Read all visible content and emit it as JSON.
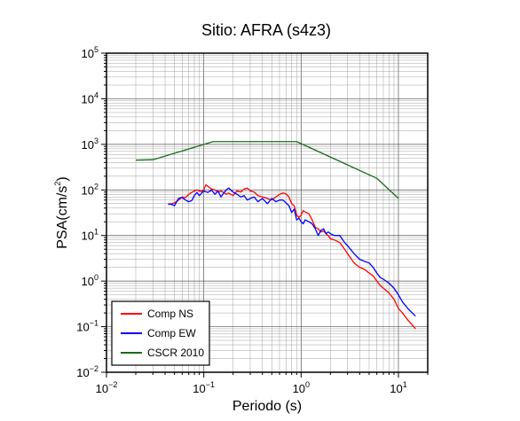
{
  "chart_data": {
    "type": "line",
    "title": "Sitio: AFRA (s4z3)",
    "xlabel": "Periodo (s)",
    "ylabel_base": "PSA(cm/s",
    "ylabel_sup": "2",
    "ylabel_close": ")",
    "xscale": "log",
    "yscale": "log",
    "xlim": [
      0.01,
      20
    ],
    "ylim": [
      0.01,
      100000
    ],
    "grid": true,
    "legend_position": "bottom-left",
    "x_ticks": [
      {
        "base": "10",
        "exp": "−2",
        "value": 0.01
      },
      {
        "base": "10",
        "exp": "−1",
        "value": 0.1
      },
      {
        "base": "10",
        "exp": "0",
        "value": 1
      },
      {
        "base": "10",
        "exp": "1",
        "value": 10
      }
    ],
    "y_ticks": [
      {
        "base": "10",
        "exp": "−2",
        "value": 0.01
      },
      {
        "base": "10",
        "exp": "−1",
        "value": 0.1
      },
      {
        "base": "10",
        "exp": "0",
        "value": 1
      },
      {
        "base": "10",
        "exp": "1",
        "value": 10
      },
      {
        "base": "10",
        "exp": "2",
        "value": 100
      },
      {
        "base": "10",
        "exp": "3",
        "value": 1000
      },
      {
        "base": "10",
        "exp": "4",
        "value": 10000
      },
      {
        "base": "10",
        "exp": "5",
        "value": 100000
      }
    ],
    "series": [
      {
        "name": "Comp NS",
        "color": "#ff0000",
        "points": [
          [
            0.043,
            48
          ],
          [
            0.047,
            50
          ],
          [
            0.05,
            52
          ],
          [
            0.055,
            60
          ],
          [
            0.06,
            70
          ],
          [
            0.065,
            68
          ],
          [
            0.07,
            80
          ],
          [
            0.075,
            88
          ],
          [
            0.08,
            95
          ],
          [
            0.085,
            100
          ],
          [
            0.09,
            95
          ],
          [
            0.095,
            92
          ],
          [
            0.1,
            100
          ],
          [
            0.105,
            130
          ],
          [
            0.11,
            120
          ],
          [
            0.12,
            105
          ],
          [
            0.13,
            100
          ],
          [
            0.14,
            90
          ],
          [
            0.15,
            95
          ],
          [
            0.16,
            88
          ],
          [
            0.17,
            80
          ],
          [
            0.18,
            85
          ],
          [
            0.2,
            75
          ],
          [
            0.22,
            95
          ],
          [
            0.24,
            90
          ],
          [
            0.26,
            105
          ],
          [
            0.28,
            110
          ],
          [
            0.3,
            95
          ],
          [
            0.33,
            90
          ],
          [
            0.36,
            75
          ],
          [
            0.4,
            70
          ],
          [
            0.45,
            65
          ],
          [
            0.5,
            60
          ],
          [
            0.55,
            70
          ],
          [
            0.6,
            80
          ],
          [
            0.65,
            85
          ],
          [
            0.7,
            82
          ],
          [
            0.75,
            70
          ],
          [
            0.8,
            50
          ],
          [
            0.85,
            45
          ],
          [
            0.9,
            28
          ],
          [
            0.95,
            25
          ],
          [
            1.0,
            28
          ],
          [
            1.05,
            35
          ],
          [
            1.1,
            33
          ],
          [
            1.2,
            30
          ],
          [
            1.3,
            22
          ],
          [
            1.4,
            15
          ],
          [
            1.5,
            14
          ],
          [
            1.6,
            12
          ],
          [
            1.7,
            12.5
          ],
          [
            1.8,
            11
          ],
          [
            1.9,
            10
          ],
          [
            2.0,
            8.5
          ],
          [
            2.2,
            8
          ],
          [
            2.5,
            7
          ],
          [
            2.8,
            5
          ],
          [
            3.0,
            4
          ],
          [
            3.5,
            2.5
          ],
          [
            4.0,
            2
          ],
          [
            4.5,
            1.8
          ],
          [
            5.0,
            1.5
          ],
          [
            5.5,
            1.3
          ],
          [
            6.0,
            1.0
          ],
          [
            6.5,
            0.8
          ],
          [
            7.0,
            0.7
          ],
          [
            8.0,
            0.55
          ],
          [
            9.0,
            0.4
          ],
          [
            10.0,
            0.25
          ],
          [
            11.0,
            0.2
          ],
          [
            12.5,
            0.14
          ],
          [
            15.0,
            0.09
          ]
        ]
      },
      {
        "name": "Comp EW",
        "color": "#0000ff",
        "points": [
          [
            0.043,
            50
          ],
          [
            0.047,
            48
          ],
          [
            0.05,
            45
          ],
          [
            0.055,
            65
          ],
          [
            0.06,
            68
          ],
          [
            0.065,
            60
          ],
          [
            0.07,
            55
          ],
          [
            0.075,
            58
          ],
          [
            0.08,
            75
          ],
          [
            0.085,
            88
          ],
          [
            0.09,
            75
          ],
          [
            0.095,
            85
          ],
          [
            0.1,
            95
          ],
          [
            0.11,
            88
          ],
          [
            0.12,
            100
          ],
          [
            0.13,
            80
          ],
          [
            0.14,
            95
          ],
          [
            0.15,
            70
          ],
          [
            0.16,
            85
          ],
          [
            0.17,
            100
          ],
          [
            0.18,
            110
          ],
          [
            0.2,
            90
          ],
          [
            0.22,
            80
          ],
          [
            0.24,
            70
          ],
          [
            0.26,
            75
          ],
          [
            0.28,
            60
          ],
          [
            0.3,
            65
          ],
          [
            0.33,
            70
          ],
          [
            0.36,
            55
          ],
          [
            0.4,
            65
          ],
          [
            0.45,
            50
          ],
          [
            0.5,
            65
          ],
          [
            0.55,
            55
          ],
          [
            0.6,
            60
          ],
          [
            0.65,
            60
          ],
          [
            0.7,
            52
          ],
          [
            0.75,
            45
          ],
          [
            0.8,
            32
          ],
          [
            0.85,
            38
          ],
          [
            0.9,
            22
          ],
          [
            0.95,
            24
          ],
          [
            1.0,
            20
          ],
          [
            1.05,
            18
          ],
          [
            1.1,
            22
          ],
          [
            1.2,
            20
          ],
          [
            1.3,
            18
          ],
          [
            1.4,
            14
          ],
          [
            1.5,
            10
          ],
          [
            1.6,
            13
          ],
          [
            1.7,
            14
          ],
          [
            1.8,
            11
          ],
          [
            1.9,
            12
          ],
          [
            2.0,
            11
          ],
          [
            2.2,
            10
          ],
          [
            2.5,
            10
          ],
          [
            2.8,
            7
          ],
          [
            3.0,
            6
          ],
          [
            3.5,
            4
          ],
          [
            4.0,
            3
          ],
          [
            4.5,
            2.7
          ],
          [
            5.0,
            2.5
          ],
          [
            5.5,
            2
          ],
          [
            6.0,
            1.5
          ],
          [
            6.5,
            1.2
          ],
          [
            7.0,
            1.1
          ],
          [
            8.0,
            0.9
          ],
          [
            9.0,
            0.7
          ],
          [
            10.0,
            0.5
          ],
          [
            11.0,
            0.35
          ],
          [
            12.5,
            0.25
          ],
          [
            15.0,
            0.17
          ]
        ]
      },
      {
        "name": "CSCR 2010",
        "color": "#1a6b1a",
        "points": [
          [
            0.02,
            450
          ],
          [
            0.03,
            460
          ],
          [
            0.125,
            1150
          ],
          [
            0.9,
            1150
          ],
          [
            6.0,
            180
          ],
          [
            10.0,
            65
          ]
        ]
      }
    ]
  }
}
